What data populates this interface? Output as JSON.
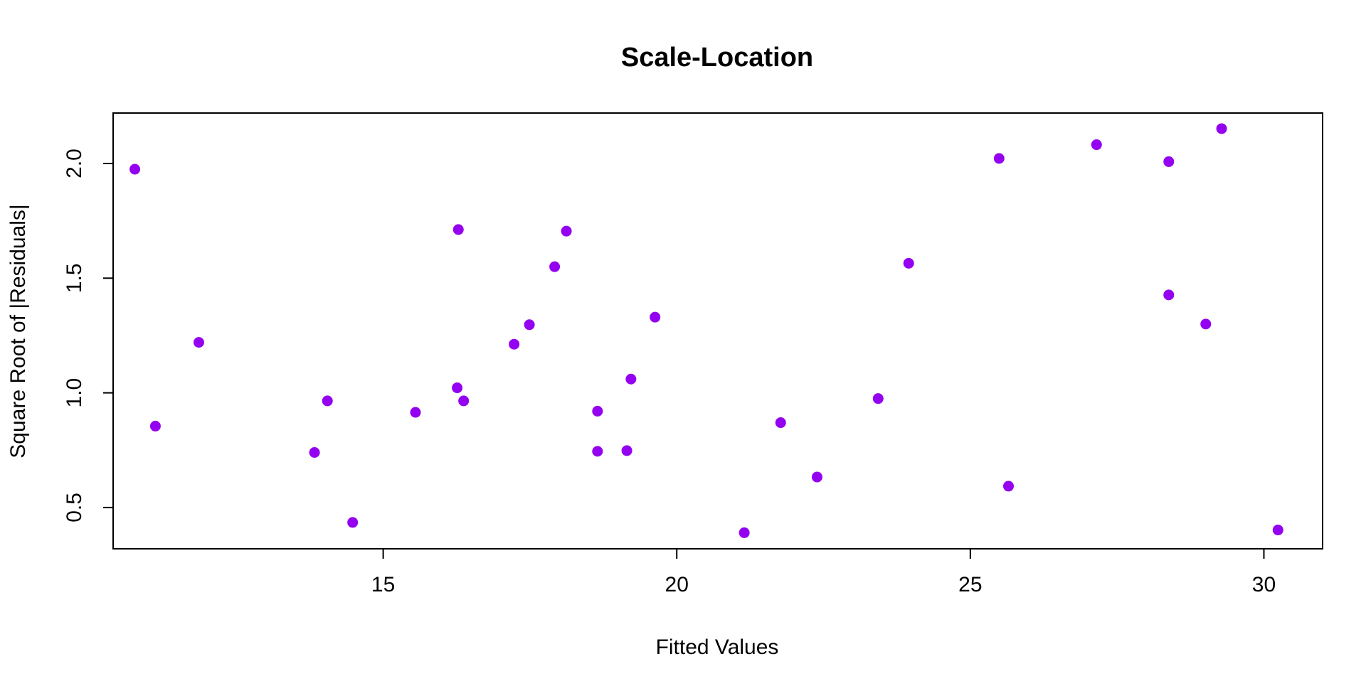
{
  "chart_data": {
    "type": "scatter",
    "title": "Scale-Location",
    "xlabel": "Fitted Values",
    "ylabel": "Square Root of |Residuals|",
    "xlim": [
      10.4,
      31.0
    ],
    "ylim": [
      0.32,
      2.22
    ],
    "x_ticks": [
      15,
      20,
      25,
      30
    ],
    "x_tick_labels": [
      "15",
      "20",
      "25",
      "30"
    ],
    "y_ticks": [
      0.5,
      1.0,
      1.5,
      2.0
    ],
    "y_tick_labels": [
      "0.5",
      "1.0",
      "1.5",
      "2.0"
    ],
    "grid": false,
    "point_color": "#9400F0",
    "points": [
      {
        "x": 10.77,
        "y": 1.975
      },
      {
        "x": 11.12,
        "y": 0.855
      },
      {
        "x": 11.86,
        "y": 1.22
      },
      {
        "x": 13.83,
        "y": 0.74
      },
      {
        "x": 14.05,
        "y": 0.965
      },
      {
        "x": 14.48,
        "y": 0.435
      },
      {
        "x": 15.55,
        "y": 0.915
      },
      {
        "x": 16.26,
        "y": 1.022
      },
      {
        "x": 16.28,
        "y": 1.712
      },
      {
        "x": 16.37,
        "y": 0.965
      },
      {
        "x": 17.23,
        "y": 1.212
      },
      {
        "x": 17.49,
        "y": 1.297
      },
      {
        "x": 17.92,
        "y": 1.55
      },
      {
        "x": 18.12,
        "y": 1.705
      },
      {
        "x": 18.65,
        "y": 0.92
      },
      {
        "x": 18.65,
        "y": 0.745
      },
      {
        "x": 19.15,
        "y": 0.748
      },
      {
        "x": 19.22,
        "y": 1.06
      },
      {
        "x": 19.63,
        "y": 1.33
      },
      {
        "x": 21.15,
        "y": 0.39
      },
      {
        "x": 21.77,
        "y": 0.87
      },
      {
        "x": 22.39,
        "y": 0.633
      },
      {
        "x": 23.43,
        "y": 0.975
      },
      {
        "x": 23.95,
        "y": 1.565
      },
      {
        "x": 25.49,
        "y": 2.022
      },
      {
        "x": 25.65,
        "y": 0.593
      },
      {
        "x": 27.15,
        "y": 2.082
      },
      {
        "x": 28.38,
        "y": 2.008
      },
      {
        "x": 28.38,
        "y": 1.427
      },
      {
        "x": 29.01,
        "y": 1.3
      },
      {
        "x": 29.28,
        "y": 2.152
      },
      {
        "x": 30.24,
        "y": 0.402
      }
    ]
  }
}
